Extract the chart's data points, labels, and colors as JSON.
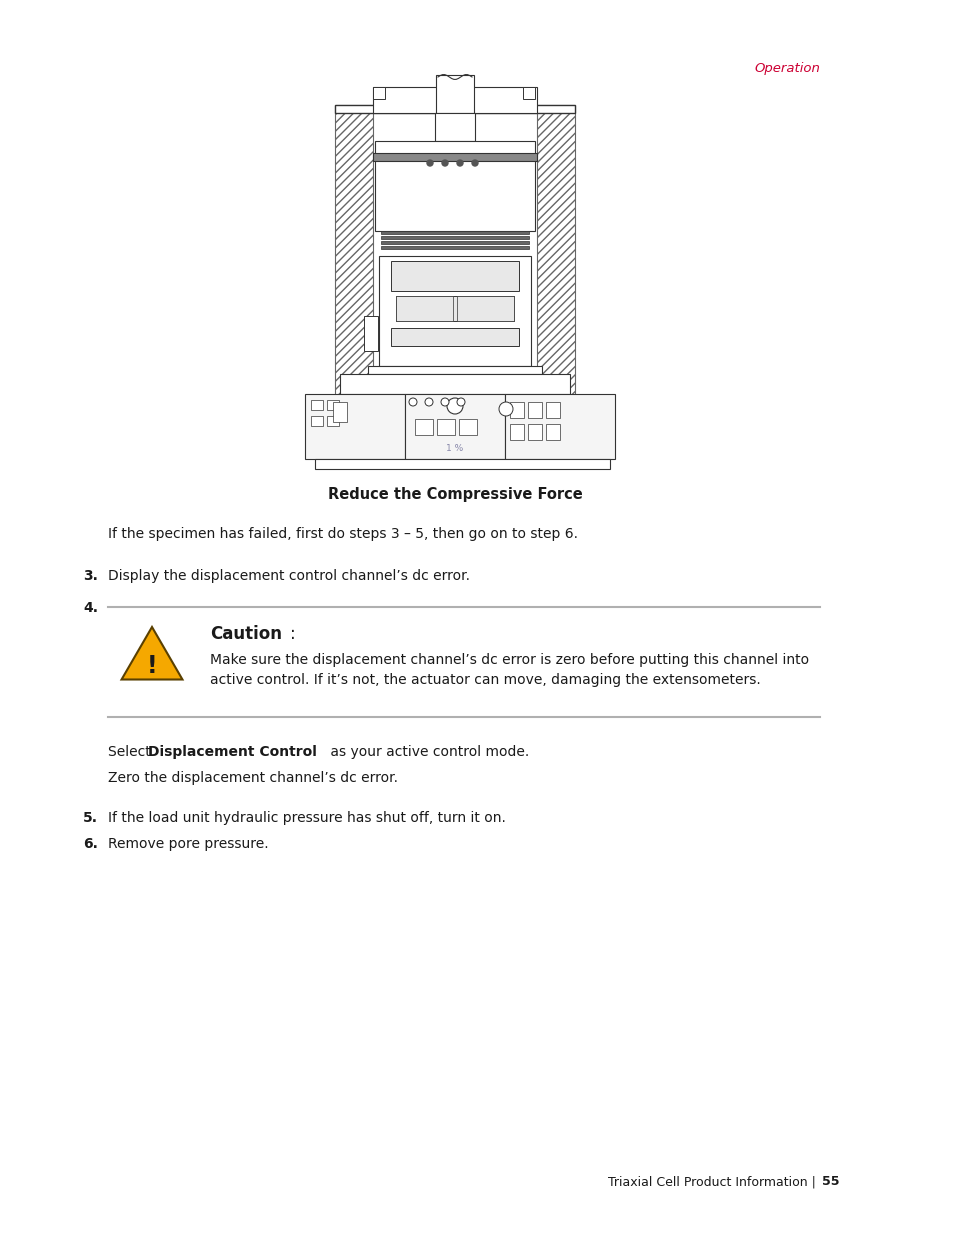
{
  "header_text": "Operation",
  "header_color": "#cc0033",
  "figure_caption": "Reduce the Compressive Force",
  "body_text_1": "If the specimen has failed, first do steps 3 – 5, then go on to step 6.",
  "step3_label": "3.",
  "step3_text": "Display the displacement control channel’s dc error.",
  "step4_label": "4.",
  "caution_title": "Caution",
  "caution_colon": ":",
  "caution_body_line1": "Make sure the displacement channel’s dc error is zero before putting this channel into",
  "caution_body_line2": "active control. If it’s not, the actuator can move, damaging the extensometers.",
  "select_text_pre": "Select ",
  "select_text_bold": "Displacement Control",
  "select_text_post": " as your active control mode.",
  "zero_text": "Zero the displacement channel’s dc error.",
  "step5_label": "5.",
  "step5_text": "If the load unit hydraulic pressure has shut off, turn it on.",
  "step6_label": "6.",
  "step6_text": "Remove pore pressure.",
  "footer_text_regular": "Triaxial Cell Product Information | ",
  "footer_text_bold": "55",
  "bg_color": "#ffffff",
  "text_color": "#1a1a1a",
  "line_color": "#b0b0b0",
  "warning_triangle_color": "#f5a800",
  "warning_border_color": "#5a4000",
  "warning_exclaim_color": "#1a1a1a",
  "diagram_hatch_color": "#cccccc",
  "diagram_line_color": "#333333",
  "diagram_fill_light": "#e8e8e8"
}
